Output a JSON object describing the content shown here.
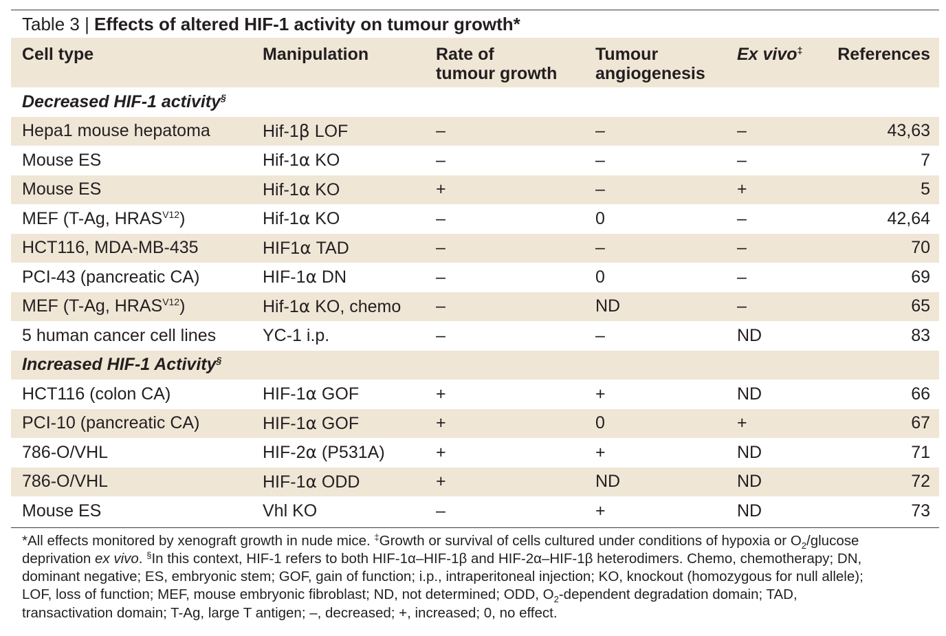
{
  "caption": {
    "label": "Table 3 | ",
    "title": "Effects of altered HIF-1 activity on tumour growth*"
  },
  "headers": {
    "cell_type": "Cell type",
    "manipulation": "Manipulation",
    "rate_line1": "Rate of",
    "rate_line2": "tumour growth",
    "angio_line1": "Tumour",
    "angio_line2": "angiogenesis",
    "exvivo": "Ex vivo",
    "exvivo_mark": "‡",
    "references": "References"
  },
  "sections": [
    {
      "title": "Decreased HIF-1 activity",
      "mark": "§",
      "rows": [
        {
          "cell_type": "Hepa1 mouse hepatoma",
          "cell_sup": "",
          "manip_pre": "Hif-1",
          "manip_sym": "β",
          "manip_post": " LOF",
          "rate": "–",
          "angio": "–",
          "exvivo": "–",
          "refs": "43,63"
        },
        {
          "cell_type": "Mouse ES",
          "cell_sup": "",
          "manip_pre": "Hif-1",
          "manip_sym": "α",
          "manip_post": " KO",
          "rate": "–",
          "angio": "–",
          "exvivo": "–",
          "refs": "7"
        },
        {
          "cell_type": "Mouse ES",
          "cell_sup": "",
          "manip_pre": "Hif-1",
          "manip_sym": "α",
          "manip_post": " KO",
          "rate": "+",
          "angio": "–",
          "exvivo": "+",
          "refs": "5"
        },
        {
          "cell_type": "MEF (T-Ag, HRAS",
          "cell_sup": "V12",
          "cell_post": ")",
          "manip_pre": "Hif-1",
          "manip_sym": "α",
          "manip_post": " KO",
          "rate": "–",
          "angio": "0",
          "exvivo": "–",
          "refs": "42,64"
        },
        {
          "cell_type": "HCT116, MDA-MB-435",
          "cell_sup": "",
          "manip_pre": "HIF1",
          "manip_sym": "α",
          "manip_post": " TAD",
          "rate": "–",
          "angio": "–",
          "exvivo": "–",
          "refs": "70"
        },
        {
          "cell_type": "PCI-43 (pancreatic CA)",
          "cell_sup": "",
          "manip_pre": "HIF-1",
          "manip_sym": "α",
          "manip_post": " DN",
          "rate": "–",
          "angio": "0",
          "exvivo": "–",
          "refs": "69"
        },
        {
          "cell_type": "MEF (T-Ag, HRAS",
          "cell_sup": "V12",
          "cell_post": ")",
          "manip_pre": "Hif-1",
          "manip_sym": "α",
          "manip_post": " KO, chemo",
          "rate": "–",
          "angio": "ND",
          "exvivo": "–",
          "refs": "65"
        },
        {
          "cell_type": "5 human cancer cell lines",
          "cell_sup": "",
          "manip_pre": "YC-1 i.p.",
          "manip_sym": "",
          "manip_post": "",
          "rate": "–",
          "angio": "–",
          "exvivo": "ND",
          "refs": "83"
        }
      ]
    },
    {
      "title": "Increased HIF-1 Activity",
      "mark": "§",
      "rows": [
        {
          "cell_type": "HCT116 (colon CA)",
          "cell_sup": "",
          "manip_pre": "HIF-1",
          "manip_sym": "α",
          "manip_post": " GOF",
          "rate": "+",
          "angio": "+",
          "exvivo": "ND",
          "refs": "66"
        },
        {
          "cell_type": "PCI-10 (pancreatic CA)",
          "cell_sup": "",
          "manip_pre": "HIF-1",
          "manip_sym": "α",
          "manip_post": " GOF",
          "rate": "+",
          "angio": "0",
          "exvivo": "+",
          "refs": "67"
        },
        {
          "cell_type": "786-O/VHL",
          "cell_sup": "",
          "manip_pre": "HIF-2",
          "manip_sym": "α",
          "manip_post": " (P531A)",
          "rate": "+",
          "angio": "+",
          "exvivo": "ND",
          "refs": "71"
        },
        {
          "cell_type": "786-O/VHL",
          "cell_sup": "",
          "manip_pre": "HIF-1",
          "manip_sym": "α",
          "manip_post": " ODD",
          "rate": "+",
          "angio": "ND",
          "exvivo": "ND",
          "refs": "72"
        },
        {
          "cell_type": "Mouse ES",
          "cell_sup": "",
          "manip_pre": "Vhl KO",
          "manip_sym": "",
          "manip_post": "",
          "rate": "–",
          "angio": "+",
          "exvivo": "ND",
          "refs": "73"
        }
      ]
    }
  ],
  "footnote": {
    "line1_a": "*All effects monitored by xenograft growth in nude mice. ",
    "line1_b": "‡",
    "line1_c": "Growth or survival of cells cultured under conditions of hypoxia or O",
    "line1_d": "2",
    "line1_e": "/glucose",
    "line2_a": "deprivation ",
    "line2_b": "ex vivo",
    "line2_c": ". ",
    "line2_d": "§",
    "line2_e": "In this context, HIF-1 refers to both HIF-1α–HIF-1β and HIF-2α–HIF-1β heterodimers. Chemo, chemotherapy; DN,",
    "line3": "dominant negative; ES, embryonic stem; GOF, gain of function; i.p., intraperitoneal injection; KO, knockout (homozygous for null allele);",
    "line4_a": "LOF, loss of function; MEF, mouse embryonic fibroblast; ND, not determined; ODD, O",
    "line4_b": "2",
    "line4_c": "-dependent degradation domain; TAD,",
    "line5": "transactivation domain; T-Ag, large T antigen; –, decreased; +, increased; 0, no effect."
  }
}
